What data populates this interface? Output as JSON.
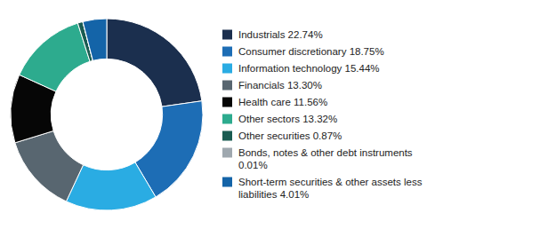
{
  "chart_data": {
    "type": "pie",
    "categories": [
      "Industrials 22.74%",
      "Consumer discretionary 18.75%",
      "Information technology 15.44%",
      "Financials 13.30%",
      "Health care 11.56%",
      "Other sectors 13.32%",
      "Other securities 0.87%",
      "Bonds, notes & other debt instruments\n0.01%",
      "Short-term securities & other assets less\nliabilities 4.01%"
    ],
    "values": [
      22.74,
      18.75,
      15.44,
      13.3,
      11.56,
      13.32,
      0.87,
      0.01,
      4.01
    ],
    "colors": [
      "#1b2f4e",
      "#1d6db5",
      "#2aace3",
      "#586670",
      "#060606",
      "#2dab8e",
      "#1a5c52",
      "#9fa8af",
      "#1464a8"
    ],
    "legend": "right"
  }
}
